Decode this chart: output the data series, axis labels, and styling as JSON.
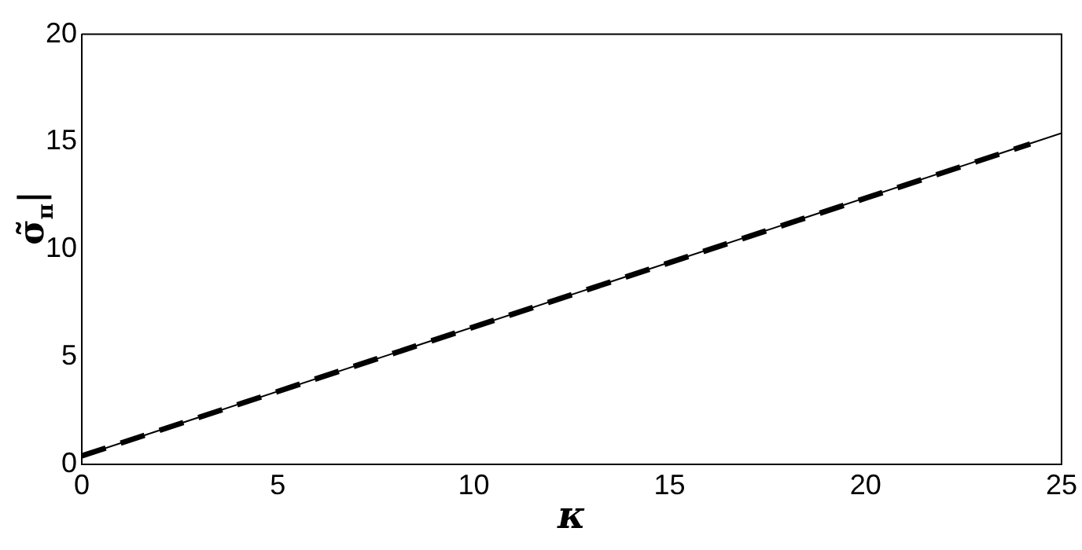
{
  "chart_data": {
    "type": "line",
    "xlabel": "κ",
    "ylabel": "σ̃$_{π}$|",
    "xlim": [
      0,
      25
    ],
    "ylim": [
      0,
      20
    ],
    "xticks": [
      0,
      5,
      10,
      15,
      20,
      25
    ],
    "yticks": [
      0,
      5,
      10,
      15,
      20
    ],
    "grid": false,
    "legend": false,
    "marker": "none",
    "series": [
      {
        "color": "#000000",
        "x": [
          0,
          25
        ],
        "values": [
          0.4,
          15.4
        ],
        "line_style": "solid"
      },
      {
        "color": "#000000",
        "x": [
          0,
          24.2
        ],
        "values": [
          0.4,
          14.9
        ],
        "line_style": "dashed"
      }
    ]
  }
}
